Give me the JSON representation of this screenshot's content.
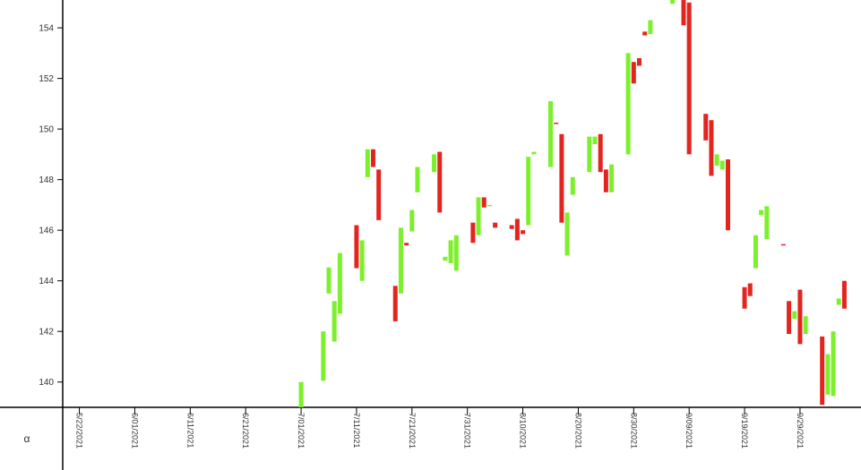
{
  "chart_data": {
    "type": "candlestick",
    "corner_label": "α",
    "up_color": "#7cf02a",
    "down_color": "#e3251f",
    "xlim": [
      "2021-05-19",
      "2021-10-10"
    ],
    "xticks": [
      {
        "value": "2021-05-22",
        "label": "5/22/2021"
      },
      {
        "value": "2021-06-01",
        "label": "6/01/2021"
      },
      {
        "value": "2021-06-11",
        "label": "6/11/2021"
      },
      {
        "value": "2021-06-21",
        "label": "6/21/2021"
      },
      {
        "value": "2021-07-01",
        "label": "7/01/2021"
      },
      {
        "value": "2021-07-11",
        "label": "7/11/2021"
      },
      {
        "value": "2021-07-21",
        "label": "7/21/2021"
      },
      {
        "value": "2021-07-31",
        "label": "7/31/2021"
      },
      {
        "value": "2021-08-10",
        "label": "8/10/2021"
      },
      {
        "value": "2021-08-20",
        "label": "8/20/2021"
      },
      {
        "value": "2021-08-30",
        "label": "8/30/2021"
      },
      {
        "value": "2021-09-09",
        "label": "9/09/2021"
      },
      {
        "value": "2021-09-19",
        "label": "9/19/2021"
      },
      {
        "value": "2021-09-29",
        "label": "9/29/2021"
      }
    ],
    "ylim": [
      139,
      155.1
    ],
    "yticks": [
      140,
      142,
      144,
      146,
      148,
      150,
      152,
      154
    ],
    "x": [
      "2021-07-01",
      "2021-07-05",
      "2021-07-06",
      "2021-07-07",
      "2021-07-08",
      "2021-07-11",
      "2021-07-12",
      "2021-07-13",
      "2021-07-14",
      "2021-07-15",
      "2021-07-18",
      "2021-07-19",
      "2021-07-20",
      "2021-07-21",
      "2021-07-22",
      "2021-07-25",
      "2021-07-26",
      "2021-07-27",
      "2021-07-28",
      "2021-07-29",
      "2021-08-01",
      "2021-08-02",
      "2021-08-03",
      "2021-08-04",
      "2021-08-05",
      "2021-08-08",
      "2021-08-09",
      "2021-08-10",
      "2021-08-11",
      "2021-08-12",
      "2021-08-15",
      "2021-08-16",
      "2021-08-17",
      "2021-08-18",
      "2021-08-19",
      "2021-08-22",
      "2021-08-23",
      "2021-08-24",
      "2021-08-25",
      "2021-08-26",
      "2021-08-29",
      "2021-08-30",
      "2021-08-31",
      "2021-09-01",
      "2021-09-02",
      "2021-09-06",
      "2021-09-08",
      "2021-09-09",
      "2021-09-12",
      "2021-09-13",
      "2021-09-14",
      "2021-09-15",
      "2021-09-16",
      "2021-09-19",
      "2021-09-20",
      "2021-09-21",
      "2021-09-22",
      "2021-09-23",
      "2021-09-26",
      "2021-09-27",
      "2021-09-28",
      "2021-09-29",
      "2021-09-30",
      "2021-10-03",
      "2021-10-04",
      "2021-10-05",
      "2021-10-06",
      "2021-10-07"
    ],
    "open": [
      138.9,
      140.05,
      143.5,
      141.6,
      142.7,
      146.2,
      144.0,
      148.1,
      149.2,
      148.4,
      143.8,
      143.5,
      145.5,
      145.95,
      147.5,
      148.3,
      149.1,
      144.8,
      144.7,
      144.4,
      146.3,
      145.8,
      147.3,
      146.95,
      146.3,
      146.2,
      146.45,
      146.0,
      146.2,
      149.0,
      148.5,
      150.25,
      149.8,
      145.0,
      147.4,
      148.3,
      149.4,
      149.8,
      148.4,
      147.5,
      149.0,
      152.65,
      152.8,
      153.85,
      153.75,
      154.95,
      155.2,
      155.0,
      150.6,
      150.35,
      148.55,
      148.4,
      148.8,
      143.75,
      143.9,
      144.5,
      146.6,
      145.65,
      145.45,
      143.2,
      142.5,
      143.65,
      141.9,
      141.8,
      139.5,
      139.45,
      143.05,
      144.0
    ],
    "close": [
      140.0,
      142.0,
      144.53,
      143.2,
      145.1,
      144.5,
      145.6,
      149.2,
      148.5,
      146.4,
      142.4,
      146.1,
      145.4,
      146.8,
      148.5,
      149.0,
      146.7,
      144.95,
      145.6,
      145.8,
      145.5,
      147.3,
      146.9,
      147.0,
      146.1,
      146.05,
      145.6,
      145.85,
      148.9,
      149.1,
      151.1,
      150.2,
      146.3,
      146.7,
      148.1,
      149.7,
      149.7,
      148.3,
      147.5,
      148.6,
      153.0,
      151.8,
      152.5,
      153.7,
      154.3,
      155.2,
      154.1,
      149.0,
      149.55,
      148.15,
      149.0,
      148.75,
      146.0,
      142.9,
      143.4,
      145.8,
      146.8,
      146.95,
      145.4,
      141.9,
      142.8,
      141.5,
      142.6,
      139.1,
      141.1,
      142.0,
      143.3,
      142.9
    ]
  }
}
